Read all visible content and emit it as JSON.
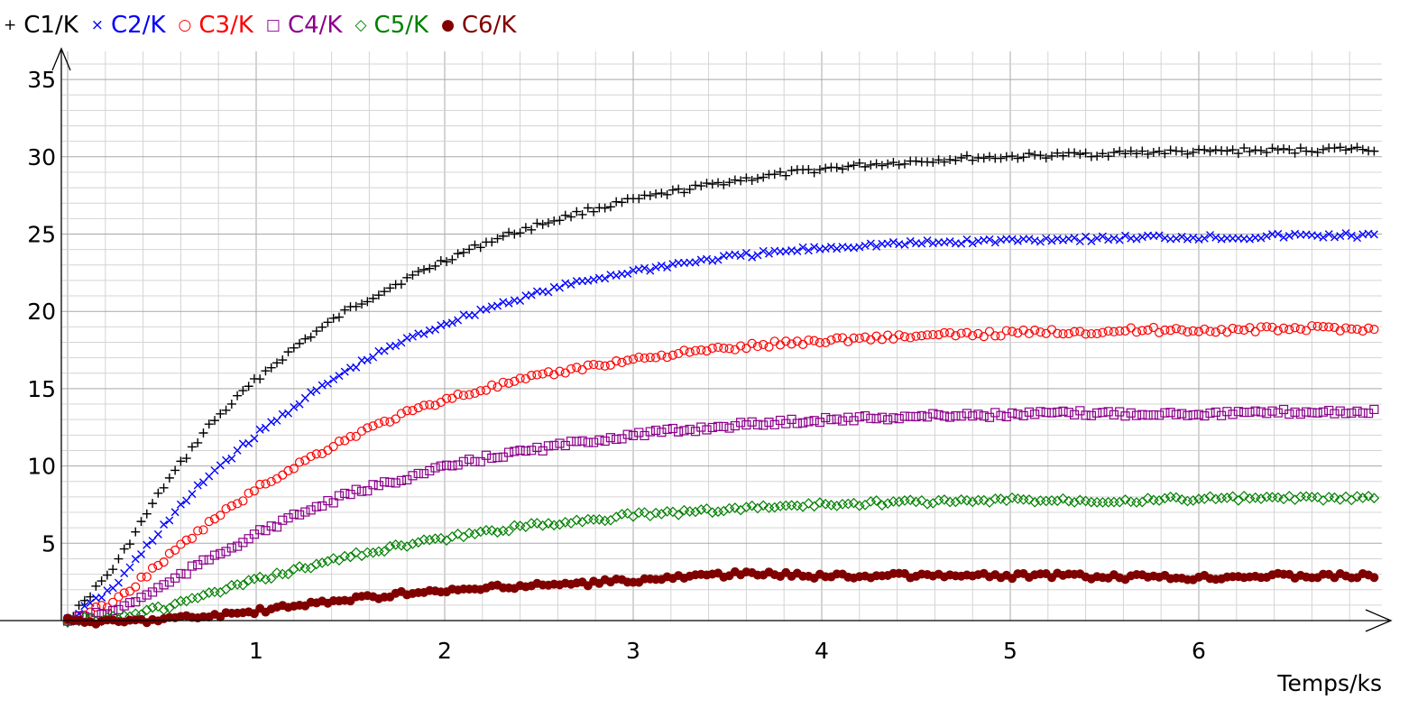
{
  "chart_data": {
    "type": "scatter",
    "xlabel": "Temps/ks",
    "ylabel": "",
    "xlim": [
      -0.1,
      7.0
    ],
    "ylim": [
      0,
      36
    ],
    "x_ticks": [
      1,
      2,
      3,
      4,
      5,
      6
    ],
    "x_tick_labels": [
      "1",
      "2",
      "3",
      "4",
      "5",
      "6"
    ],
    "y_ticks": [
      5,
      10,
      15,
      20,
      25,
      30,
      35
    ],
    "y_tick_labels": [
      "5",
      "10",
      "15",
      "20",
      "25",
      "30",
      "35"
    ],
    "grid": true,
    "legend_position": "top-left",
    "series": [
      {
        "name": "C1/K",
        "marker": "+",
        "marker_shape": "plus",
        "color": "#000000",
        "x": [
          0.0,
          0.25,
          0.5,
          0.75,
          1.0,
          1.25,
          1.5,
          1.75,
          2.0,
          2.25,
          2.5,
          2.75,
          3.0,
          3.25,
          3.5,
          3.75,
          4.0,
          4.25,
          4.5,
          4.75,
          5.0,
          5.25,
          5.5,
          5.75,
          6.0,
          6.25,
          6.5,
          6.75,
          6.95
        ],
        "y": [
          0.0,
          3.5,
          8.5,
          12.6,
          15.6,
          18.1,
          20.2,
          21.8,
          23.3,
          24.6,
          25.6,
          26.5,
          27.2,
          27.8,
          28.4,
          28.8,
          29.2,
          29.5,
          29.7,
          29.9,
          30.0,
          30.1,
          30.2,
          30.3,
          30.3,
          30.4,
          30.4,
          30.5,
          30.5
        ]
      },
      {
        "name": "C2/K",
        "marker": "×",
        "marker_shape": "cross",
        "color": "#0000ff",
        "x": [
          0.0,
          0.25,
          0.5,
          0.75,
          1.0,
          1.25,
          1.5,
          1.75,
          2.0,
          2.25,
          2.5,
          2.75,
          3.0,
          3.25,
          3.5,
          3.75,
          4.0,
          4.25,
          4.5,
          4.75,
          5.0,
          5.25,
          5.5,
          5.75,
          6.0,
          6.25,
          6.5,
          6.75,
          6.95
        ],
        "y": [
          0.0,
          2.2,
          6.0,
          9.4,
          12.0,
          14.3,
          16.3,
          17.9,
          19.2,
          20.3,
          21.2,
          22.0,
          22.6,
          23.1,
          23.5,
          23.8,
          24.1,
          24.3,
          24.4,
          24.5,
          24.6,
          24.7,
          24.7,
          24.8,
          24.8,
          24.8,
          24.9,
          24.9,
          24.9
        ]
      },
      {
        "name": "C3/K",
        "marker": "○",
        "marker_shape": "circle",
        "color": "#ff0000",
        "x": [
          0.0,
          0.25,
          0.5,
          0.75,
          1.0,
          1.25,
          1.5,
          1.75,
          2.0,
          2.25,
          2.5,
          2.75,
          3.0,
          3.25,
          3.5,
          3.75,
          4.0,
          4.25,
          4.5,
          4.75,
          5.0,
          5.25,
          5.5,
          5.75,
          6.0,
          6.25,
          6.5,
          6.75,
          6.95
        ],
        "y": [
          0.0,
          1.2,
          3.8,
          6.3,
          8.5,
          10.3,
          11.9,
          13.2,
          14.3,
          15.1,
          15.8,
          16.4,
          16.9,
          17.3,
          17.6,
          17.9,
          18.1,
          18.3,
          18.4,
          18.5,
          18.6,
          18.7,
          18.7,
          18.8,
          18.8,
          18.8,
          18.9,
          18.9,
          18.9
        ]
      },
      {
        "name": "C4/K",
        "marker": "□",
        "marker_shape": "square",
        "color": "#8b008b",
        "x": [
          0.0,
          0.25,
          0.5,
          0.75,
          1.0,
          1.25,
          1.5,
          1.75,
          2.0,
          2.25,
          2.5,
          2.75,
          3.0,
          3.25,
          3.5,
          3.75,
          4.0,
          4.25,
          4.5,
          4.75,
          5.0,
          5.25,
          5.5,
          5.75,
          6.0,
          6.25,
          6.5,
          6.75,
          6.95
        ],
        "y": [
          0.0,
          0.6,
          2.2,
          4.0,
          5.6,
          7.0,
          8.2,
          9.1,
          9.9,
          10.6,
          11.1,
          11.6,
          12.0,
          12.3,
          12.6,
          12.8,
          13.0,
          13.1,
          13.2,
          13.3,
          13.3,
          13.4,
          13.4,
          13.4,
          13.4,
          13.4,
          13.5,
          13.5,
          13.5
        ]
      },
      {
        "name": "C5/K",
        "marker": "◇",
        "marker_shape": "diamond",
        "color": "#008000",
        "x": [
          0.0,
          0.25,
          0.5,
          0.75,
          1.0,
          1.25,
          1.5,
          1.75,
          2.0,
          2.25,
          2.5,
          2.75,
          3.0,
          3.25,
          3.5,
          3.75,
          4.0,
          4.25,
          4.5,
          4.75,
          5.0,
          5.25,
          5.5,
          5.75,
          6.0,
          6.25,
          6.5,
          6.75,
          6.95
        ],
        "y": [
          0.0,
          0.2,
          0.8,
          1.7,
          2.6,
          3.4,
          4.2,
          4.8,
          5.3,
          5.8,
          6.2,
          6.5,
          6.8,
          7.0,
          7.2,
          7.4,
          7.5,
          7.6,
          7.7,
          7.7,
          7.8,
          7.8,
          7.8,
          7.8,
          7.9,
          7.9,
          7.9,
          7.9,
          7.9
        ]
      },
      {
        "name": "C6/K",
        "marker": "●",
        "marker_shape": "dot",
        "color": "#800000",
        "x": [
          0.0,
          0.25,
          0.5,
          0.75,
          1.0,
          1.25,
          1.5,
          1.75,
          2.0,
          2.25,
          2.5,
          2.75,
          3.0,
          3.25,
          3.5,
          3.75,
          4.0,
          4.25,
          4.5,
          4.75,
          5.0,
          5.25,
          5.5,
          5.75,
          6.0,
          6.25,
          6.5,
          6.75,
          6.95
        ],
        "y": [
          0.0,
          -0.1,
          0.1,
          0.3,
          0.6,
          1.0,
          1.4,
          1.7,
          1.9,
          2.1,
          2.3,
          2.4,
          2.6,
          2.8,
          3.0,
          3.0,
          2.9,
          2.9,
          2.9,
          2.9,
          2.9,
          2.9,
          2.8,
          2.8,
          2.8,
          2.9,
          2.9,
          2.9,
          2.9
        ]
      }
    ]
  }
}
